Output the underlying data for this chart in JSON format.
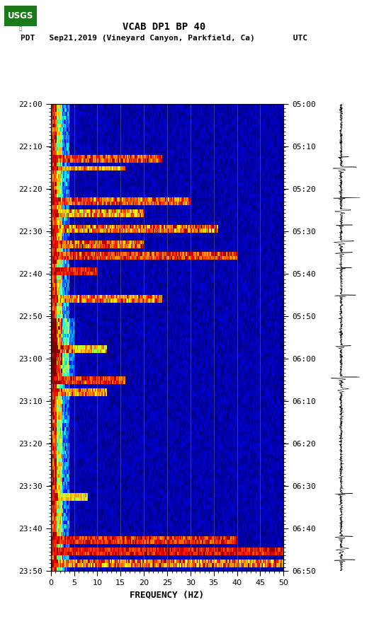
{
  "title_line1": "VCAB DP1 BP 40",
  "title_line2": "PDT   Sep21,2019 (Vineyard Canyon, Parkfield, Ca)        UTC",
  "xlabel": "FREQUENCY (HZ)",
  "freq_min": 0,
  "freq_max": 50,
  "left_times": [
    "22:00",
    "22:10",
    "22:20",
    "22:30",
    "22:40",
    "22:50",
    "23:00",
    "23:10",
    "23:20",
    "23:30",
    "23:40",
    "23:50"
  ],
  "right_times": [
    "05:00",
    "05:10",
    "05:20",
    "05:30",
    "05:40",
    "05:50",
    "06:00",
    "06:10",
    "06:20",
    "06:30",
    "06:40",
    "06:50"
  ],
  "n_time_steps": 120,
  "n_freq_steps": 250,
  "background_color": "#ffffff",
  "colormap": "jet",
  "fig_width": 5.52,
  "fig_height": 8.92,
  "dpi": 100,
  "vertical_lines_freq": [
    5,
    10,
    15,
    20,
    25,
    30,
    35,
    40,
    45
  ],
  "vertical_line_color": "#808080"
}
